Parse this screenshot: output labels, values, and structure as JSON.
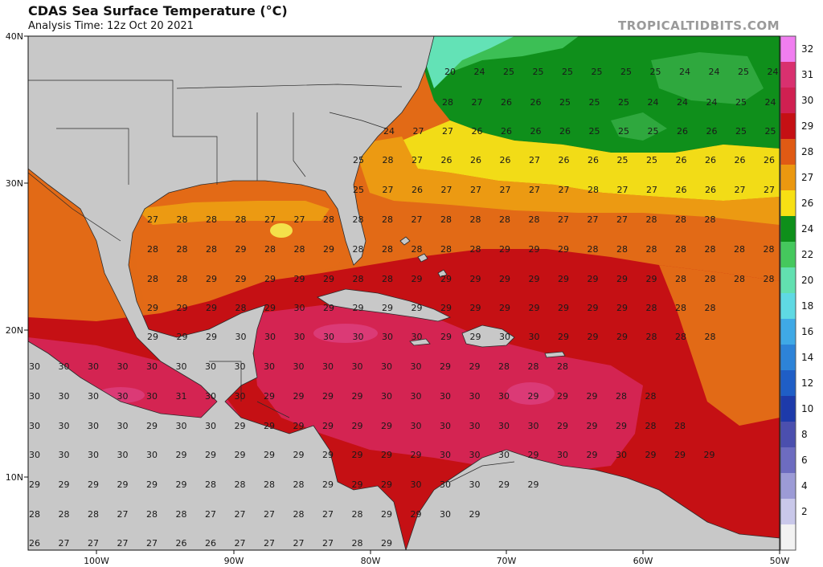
{
  "title": "CDAS Sea Surface Temperature (°C)",
  "subtitle": "Analysis Time: 12z Oct 20 2021",
  "watermark": "TROPICALTIDBITS.COM",
  "axes": {
    "lon_ticks": [
      "100W",
      "90W",
      "80W",
      "70W",
      "60W",
      "50W"
    ],
    "lat_ticks": [
      "40N",
      "30N",
      "20N",
      "10N"
    ]
  },
  "colorbar": {
    "stops": [
      {
        "value": "32",
        "color": "#f07ef0"
      },
      {
        "value": "31",
        "color": "#d9306f"
      },
      {
        "value": "30",
        "color": "#d02051"
      },
      {
        "value": "29",
        "color": "#c51014"
      },
      {
        "value": "28",
        "color": "#e05a14"
      },
      {
        "value": "27",
        "color": "#eb9810"
      },
      {
        "value": "26",
        "color": "#f7e014"
      },
      {
        "value": "24",
        "color": "#0e8f1a"
      },
      {
        "value": "22",
        "color": "#45c85d"
      },
      {
        "value": "20",
        "color": "#62e0b0"
      },
      {
        "value": "18",
        "color": "#5fd9e3"
      },
      {
        "value": "16",
        "color": "#3fa9e6"
      },
      {
        "value": "14",
        "color": "#2d83d8"
      },
      {
        "value": "12",
        "color": "#1f5ec6"
      },
      {
        "value": "10",
        "color": "#1d3aaa"
      },
      {
        "value": "8",
        "color": "#4b4fae"
      },
      {
        "value": "6",
        "color": "#6d6cc0"
      },
      {
        "value": "4",
        "color": "#9c9bd6"
      },
      {
        "value": "2",
        "color": "#c9c8ea"
      },
      {
        "value": "",
        "color": "#f2f2f2"
      }
    ]
  },
  "temperature_labels": [
    {
      "row": 0,
      "vals": [
        "20",
        "24",
        "25",
        "25",
        "25",
        "25",
        "25",
        "25",
        "24",
        "24",
        "25",
        "24"
      ]
    },
    {
      "row": 1,
      "vals": [
        "28",
        "27",
        "26",
        "26",
        "25",
        "25",
        "25",
        "24",
        "24",
        "24",
        "25",
        "24"
      ]
    },
    {
      "row": 2,
      "vals": [
        "24",
        "27",
        "27",
        "26",
        "26",
        "26",
        "26",
        "25",
        "25",
        "25",
        "26",
        "26",
        "25",
        "25"
      ]
    },
    {
      "row": 3,
      "vals": [
        "25",
        "28",
        "27",
        "26",
        "26",
        "26",
        "27",
        "26",
        "26",
        "25",
        "25",
        "26",
        "26",
        "26",
        "26"
      ]
    },
    {
      "row": 4,
      "vals": [
        "25",
        "27",
        "26",
        "27",
        "27",
        "27",
        "27",
        "27",
        "28",
        "27",
        "27",
        "26",
        "26",
        "27",
        "27",
        "27",
        "26"
      ]
    },
    {
      "row": 5,
      "vals": [
        "27",
        "28",
        "28",
        "28",
        "27",
        "27",
        "28",
        "28",
        "28",
        "27",
        "28",
        "28",
        "28",
        "28",
        "27",
        "27",
        "27",
        "28",
        "28",
        "28"
      ]
    },
    {
      "row": 6,
      "vals": [
        "28",
        "28",
        "28",
        "29",
        "28",
        "28",
        "29",
        "28",
        "28",
        "28",
        "28",
        "28",
        "29",
        "29",
        "29",
        "28",
        "28",
        "28",
        "28",
        "28",
        "28",
        "28"
      ]
    },
    {
      "row": 7,
      "vals": [
        "28",
        "28",
        "29",
        "29",
        "29",
        "29",
        "29",
        "28",
        "28",
        "29",
        "29",
        "29",
        "29",
        "29",
        "29",
        "29",
        "29",
        "29",
        "28",
        "28",
        "28",
        "28",
        "28"
      ]
    },
    {
      "row": 8,
      "vals": [
        "29",
        "29",
        "29",
        "28",
        "29",
        "30",
        "29",
        "29",
        "29",
        "29",
        "29",
        "29",
        "29",
        "29",
        "29",
        "29",
        "29",
        "28",
        "28",
        "28"
      ]
    },
    {
      "row": 9,
      "vals": [
        "29",
        "29",
        "29",
        "30",
        "30",
        "30",
        "30",
        "30",
        "30",
        "30",
        "29",
        "29",
        "30",
        "30",
        "29",
        "29",
        "29",
        "28",
        "28",
        "28"
      ]
    },
    {
      "row": 10,
      "vals": [
        "30",
        "30",
        "30",
        "30",
        "30",
        "30",
        "30",
        "30",
        "30",
        "30",
        "30",
        "30",
        "30",
        "30",
        "29",
        "29",
        "28",
        "28",
        "28"
      ]
    },
    {
      "row": 11,
      "vals": [
        "30",
        "30",
        "30",
        "30",
        "30",
        "31",
        "30",
        "30",
        "29",
        "29",
        "29",
        "29",
        "30",
        "30",
        "30",
        "30",
        "30",
        "29",
        "29",
        "29",
        "28",
        "28"
      ]
    },
    {
      "row": 12,
      "vals": [
        "30",
        "30",
        "30",
        "30",
        "29",
        "30",
        "30",
        "29",
        "29",
        "29",
        "29",
        "29",
        "29",
        "30",
        "30",
        "30",
        "30",
        "30",
        "29",
        "29",
        "29",
        "28",
        "28"
      ]
    },
    {
      "row": 13,
      "vals": [
        "30",
        "30",
        "30",
        "30",
        "30",
        "29",
        "29",
        "29",
        "29",
        "29",
        "29",
        "29",
        "29",
        "29",
        "30",
        "30",
        "30",
        "29",
        "30",
        "29",
        "30",
        "29",
        "29",
        "29"
      ]
    },
    {
      "row": 14,
      "vals": [
        "29",
        "29",
        "29",
        "29",
        "29",
        "29",
        "28",
        "28",
        "28",
        "28",
        "29",
        "29",
        "29",
        "30",
        "30",
        "30",
        "29",
        "29"
      ]
    },
    {
      "row": 15,
      "vals": [
        "28",
        "28",
        "28",
        "27",
        "28",
        "28",
        "27",
        "27",
        "27",
        "28",
        "27",
        "28",
        "29",
        "29",
        "30",
        "29"
      ]
    },
    {
      "row": 16,
      "vals": [
        "26",
        "27",
        "27",
        "27",
        "27",
        "26",
        "26",
        "27",
        "27",
        "27",
        "27",
        "28",
        "29"
      ]
    }
  ]
}
